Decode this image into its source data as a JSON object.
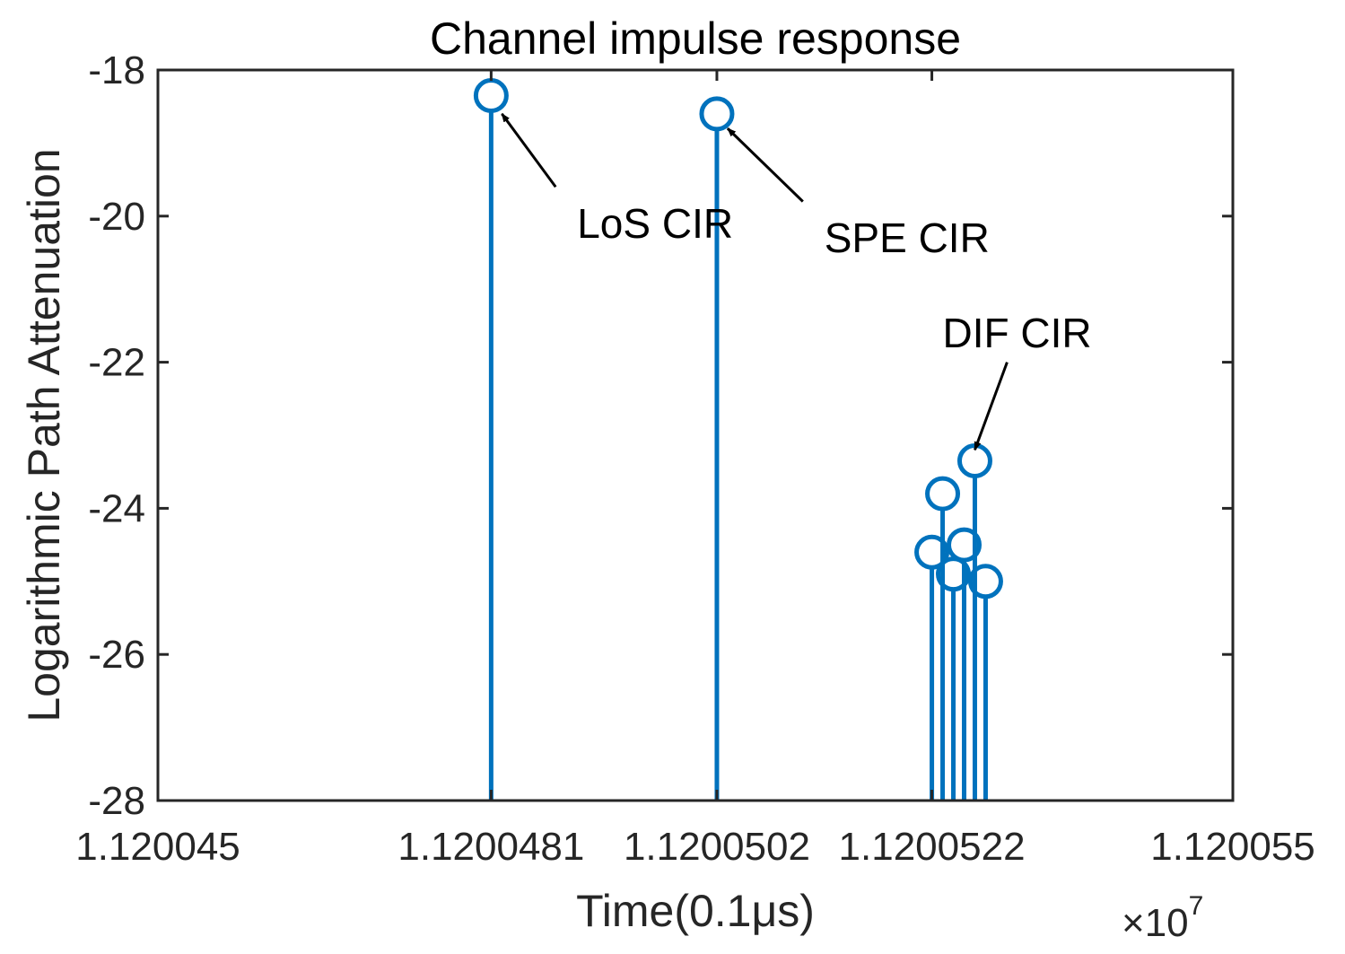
{
  "chart_data": {
    "type": "stem",
    "title": "Channel impulse response",
    "xlabel": "Time(0.1μs)",
    "ylabel": "Logarithmic Path Attenuation",
    "x_exponent_label": "×10",
    "x_exponent_power": "7",
    "xlim": [
      11200450,
      11200550
    ],
    "ylim": [
      -28,
      -18
    ],
    "baseline": -28,
    "grid": false,
    "xticks": [
      11200450,
      11200481,
      11200502,
      11200522,
      11200550
    ],
    "xtick_labels": [
      "1.120045",
      "1.1200481",
      "1.1200502",
      "1.1200522",
      "1.120055"
    ],
    "yticks": [
      -18,
      -20,
      -22,
      -24,
      -26,
      -28
    ],
    "ytick_labels": [
      "-18",
      "-20",
      "-22",
      "-24",
      "-26",
      "-28"
    ],
    "series": [
      {
        "color": "#0072BD",
        "marker": "circle",
        "points": [
          {
            "x": 11200481,
            "y": -18.35
          },
          {
            "x": 11200502,
            "y": -18.6
          },
          {
            "x": 11200522,
            "y": -24.6
          },
          {
            "x": 11200523,
            "y": -23.8
          },
          {
            "x": 11200524,
            "y": -24.9
          },
          {
            "x": 11200525,
            "y": -24.5
          },
          {
            "x": 11200526,
            "y": -23.35
          },
          {
            "x": 11200527,
            "y": -25.0
          }
        ]
      }
    ],
    "annotations": [
      {
        "text": "LoS CIR",
        "text_x": 11200489,
        "text_y": -20.1,
        "arrow_from_x": 11200487,
        "arrow_from_y": -19.6,
        "arrow_to_x": 11200482,
        "arrow_to_y": -18.6
      },
      {
        "text": "SPE CIR",
        "text_x": 11200512,
        "text_y": -20.3,
        "arrow_from_x": 11200510,
        "arrow_from_y": -19.8,
        "arrow_to_x": 11200503,
        "arrow_to_y": -18.8
      },
      {
        "text": "DIF CIR",
        "text_x": 11200523,
        "text_y": -21.6,
        "arrow_from_x": 11200529,
        "arrow_from_y": -22.0,
        "arrow_to_x": 11200526,
        "arrow_to_y": -23.2
      }
    ]
  }
}
